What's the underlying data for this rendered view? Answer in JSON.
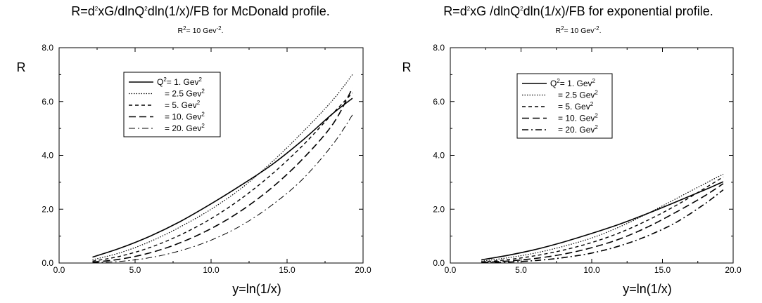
{
  "chart_data": [
    {
      "type": "line",
      "title": [
        "R=d",
        "2",
        "xG/dlnQ",
        "2",
        "dln(1/x)/FB  for  McDonald profile."
      ],
      "subtitle": [
        "R",
        "2",
        "= 10 Gev",
        "-2",
        "."
      ],
      "xlabel": "y=ln(1/x)",
      "ylabel": "R",
      "xlim": [
        0,
        20
      ],
      "ylim": [
        0,
        8
      ],
      "xticks": [
        "0.0",
        "5.0",
        "10.0",
        "15.0",
        "20.0"
      ],
      "yticks": [
        "0.0",
        "2.0",
        "4.0",
        "6.0",
        "8.0"
      ],
      "legend_position": "top-center",
      "series": [
        {
          "name": [
            "Q",
            "2",
            "= 1.  Gev",
            "2"
          ],
          "x": [
            2.2,
            4,
            6,
            8,
            10,
            12,
            14,
            16,
            18,
            19.3
          ],
          "values": [
            0.22,
            0.55,
            1.0,
            1.55,
            2.2,
            2.9,
            3.65,
            4.55,
            5.55,
            6.12
          ]
        },
        {
          "name": [
            "= 2.5 Gev",
            "2"
          ],
          "x": [
            2.2,
            4,
            6,
            8,
            10,
            12,
            14,
            16,
            18,
            19.3
          ],
          "values": [
            0.12,
            0.38,
            0.8,
            1.35,
            2.0,
            2.78,
            3.75,
            4.85,
            6.05,
            7.0
          ]
        },
        {
          "name": [
            "= 5.  Gev",
            "2"
          ],
          "x": [
            2.2,
            4,
            6,
            8,
            10,
            12,
            14,
            16,
            18,
            19.3
          ],
          "values": [
            0.07,
            0.25,
            0.58,
            1.05,
            1.65,
            2.4,
            3.3,
            4.35,
            5.55,
            6.32
          ]
        },
        {
          "name": [
            "= 10. Gev",
            "2"
          ],
          "x": [
            2.2,
            4,
            6,
            8,
            10,
            12,
            14,
            16,
            18,
            19.3
          ],
          "values": [
            0.03,
            0.14,
            0.38,
            0.76,
            1.28,
            1.95,
            2.8,
            3.85,
            5.15,
            6.5
          ]
        },
        {
          "name": [
            "= 20. Gev",
            "2"
          ],
          "x": [
            2.2,
            4,
            6,
            8,
            10,
            12,
            14,
            16,
            18,
            19.3
          ],
          "values": [
            0.01,
            0.06,
            0.2,
            0.46,
            0.85,
            1.4,
            2.15,
            3.1,
            4.4,
            5.5
          ]
        }
      ]
    },
    {
      "type": "line",
      "title": [
        "R=d",
        "2",
        "xG /dlnQ",
        "2",
        "dln(1/x)/FB  for  exponential profile."
      ],
      "subtitle": [
        "R",
        "2",
        "= 10 Gev",
        "-2",
        "."
      ],
      "xlabel": "y=ln(1/x)",
      "ylabel": "R",
      "xlim": [
        0,
        20
      ],
      "ylim": [
        0,
        8
      ],
      "xticks": [
        "0.0",
        "5.0",
        "10.0",
        "15.0",
        "20.0"
      ],
      "yticks": [
        "0.0",
        "2.0",
        "4.0",
        "6.0",
        "8.0"
      ],
      "legend_position": "top-center",
      "series": [
        {
          "name": [
            "Q",
            "2",
            "= 1.  Gev",
            "2"
          ],
          "x": [
            2.2,
            4,
            6,
            8,
            10,
            12,
            14,
            16,
            18,
            19.3
          ],
          "values": [
            0.12,
            0.28,
            0.5,
            0.78,
            1.1,
            1.45,
            1.85,
            2.28,
            2.72,
            3.02
          ]
        },
        {
          "name": [
            "= 2.5 Gev",
            "2"
          ],
          "x": [
            2.2,
            4,
            6,
            8,
            10,
            12,
            14,
            16,
            18,
            19.3
          ],
          "values": [
            0.07,
            0.19,
            0.37,
            0.62,
            0.93,
            1.35,
            1.85,
            2.4,
            2.95,
            3.3
          ]
        },
        {
          "name": [
            "= 5.  Gev",
            "2"
          ],
          "x": [
            2.2,
            4,
            6,
            8,
            10,
            12,
            14,
            16,
            18,
            19.3
          ],
          "values": [
            0.04,
            0.12,
            0.27,
            0.48,
            0.76,
            1.13,
            1.6,
            2.15,
            2.78,
            3.2
          ]
        },
        {
          "name": [
            "= 10. Gev",
            "2"
          ],
          "x": [
            2.2,
            4,
            6,
            8,
            10,
            12,
            14,
            16,
            18,
            19.3
          ],
          "values": [
            0.02,
            0.07,
            0.17,
            0.33,
            0.57,
            0.9,
            1.35,
            1.9,
            2.5,
            2.95
          ]
        },
        {
          "name": [
            "= 20. Gev",
            "2"
          ],
          "x": [
            2.2,
            4,
            6,
            8,
            10,
            12,
            14,
            16,
            18,
            19.3
          ],
          "values": [
            0.01,
            0.03,
            0.09,
            0.2,
            0.37,
            0.64,
            1.02,
            1.52,
            2.2,
            2.72
          ]
        }
      ]
    }
  ]
}
